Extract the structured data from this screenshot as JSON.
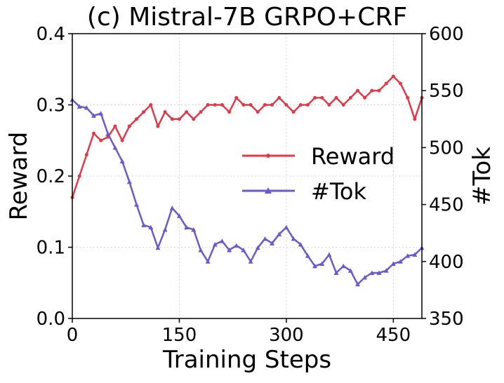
{
  "chart_data": {
    "type": "line",
    "title": "(c) Mistral-7B GRPO+CRF",
    "xlabel": "Training Steps",
    "ylabel": "Reward",
    "y2label": "#Tok",
    "xlim": [
      0,
      490
    ],
    "ylim": [
      0.0,
      0.4
    ],
    "y2lim": [
      350,
      600
    ],
    "xticks": [
      0,
      150,
      300,
      450
    ],
    "xtick_labels": [
      "0",
      "150",
      "300",
      "450"
    ],
    "yticks": [
      0.0,
      0.1,
      0.2,
      0.3,
      0.4
    ],
    "ytick_labels": [
      "0.0",
      "0.1",
      "0.2",
      "0.3",
      "0.4"
    ],
    "y2ticks": [
      350,
      400,
      450,
      500,
      550,
      600
    ],
    "y2tick_labels": [
      "350",
      "400",
      "450",
      "500",
      "550",
      "600"
    ],
    "grid": true,
    "legend_position": "center-right",
    "series": [
      {
        "name": "Reward",
        "axis": "left",
        "color": "#e03a4a",
        "marker": "circle",
        "x": [
          0,
          10,
          20,
          30,
          40,
          50,
          60,
          70,
          80,
          90,
          100,
          110,
          120,
          130,
          140,
          150,
          160,
          170,
          180,
          190,
          200,
          210,
          220,
          230,
          240,
          250,
          260,
          270,
          280,
          290,
          300,
          310,
          320,
          330,
          340,
          350,
          360,
          370,
          380,
          390,
          400,
          410,
          420,
          430,
          440,
          450,
          460,
          470,
          480,
          490
        ],
        "values": [
          0.17,
          0.2,
          0.23,
          0.26,
          0.25,
          0.255,
          0.27,
          0.25,
          0.27,
          0.28,
          0.29,
          0.3,
          0.27,
          0.29,
          0.28,
          0.28,
          0.29,
          0.28,
          0.29,
          0.3,
          0.3,
          0.3,
          0.29,
          0.31,
          0.3,
          0.3,
          0.29,
          0.3,
          0.3,
          0.31,
          0.3,
          0.29,
          0.3,
          0.3,
          0.31,
          0.31,
          0.3,
          0.31,
          0.3,
          0.31,
          0.32,
          0.31,
          0.32,
          0.32,
          0.33,
          0.34,
          0.33,
          0.31,
          0.28,
          0.31
        ]
      },
      {
        "name": "#Tok",
        "axis": "right",
        "color": "#6a5acd",
        "marker": "triangle",
        "x": [
          0,
          10,
          20,
          30,
          40,
          50,
          60,
          70,
          80,
          90,
          100,
          110,
          120,
          130,
          140,
          150,
          160,
          170,
          180,
          190,
          200,
          210,
          220,
          230,
          240,
          250,
          260,
          270,
          280,
          290,
          300,
          310,
          320,
          330,
          340,
          350,
          360,
          370,
          380,
          390,
          400,
          410,
          420,
          430,
          440,
          450,
          460,
          470,
          480,
          490
        ],
        "values": [
          542,
          536,
          535,
          528,
          530,
          512,
          500,
          488,
          470,
          450,
          432,
          430,
          412,
          428,
          447,
          440,
          430,
          428,
          410,
          400,
          415,
          418,
          410,
          414,
          410,
          400,
          412,
          420,
          416,
          424,
          430,
          420,
          415,
          405,
          396,
          398,
          406,
          390,
          396,
          392,
          380,
          386,
          390,
          390,
          392,
          398,
          400,
          405,
          406,
          412
        ]
      }
    ]
  }
}
